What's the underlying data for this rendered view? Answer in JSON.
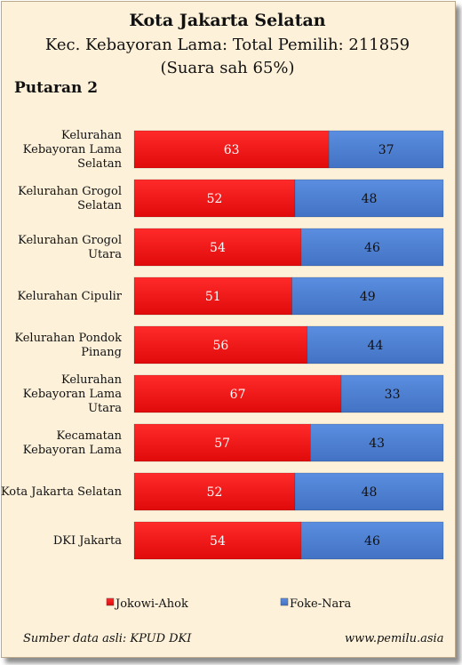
{
  "header": {
    "title": "Kota Jakarta Selatan",
    "subtitle": "Kec. Kebayoran Lama: Total Pemilih: 211859",
    "subtitle2": "(Suara sah 65%)",
    "round": "Putaran 2"
  },
  "footer": {
    "source": "Sumber data asli: KPUD DKI",
    "website": "www.pemilu.asia"
  },
  "colors": {
    "background": "#fdf1d9",
    "series1": "#ee1111",
    "series2": "#4d7fd1"
  },
  "chart_data": {
    "type": "bar",
    "stacked": true,
    "orientation": "horizontal",
    "categories": [
      [
        "Kelurahan",
        "Kebayoran Lama",
        "Selatan"
      ],
      [
        "Kelurahan Grogol",
        "Selatan"
      ],
      [
        "Kelurahan Grogol",
        "Utara"
      ],
      [
        "Kelurahan Cipulir"
      ],
      [
        "Kelurahan Pondok",
        "Pinang"
      ],
      [
        "Kelurahan",
        "Kebayoran Lama",
        "Utara"
      ],
      [
        "Kecamatan",
        "Kebayoran Lama"
      ],
      [
        "Kota Jakarta Selatan"
      ],
      [
        "DKI Jakarta"
      ]
    ],
    "series": [
      {
        "name": "Jokowi-Ahok",
        "values": [
          63,
          52,
          54,
          51,
          56,
          67,
          57,
          52,
          54
        ]
      },
      {
        "name": "Foke-Nara",
        "values": [
          37,
          48,
          46,
          49,
          44,
          33,
          43,
          48,
          46
        ]
      }
    ],
    "xlim": [
      0,
      100
    ],
    "legend": "bottom"
  }
}
